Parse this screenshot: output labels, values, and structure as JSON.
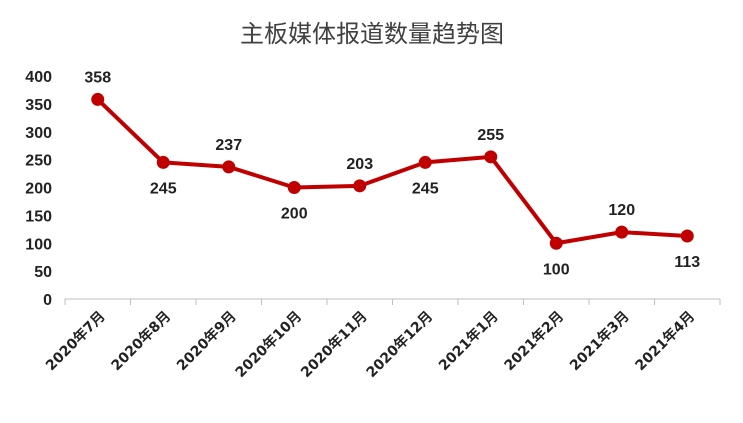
{
  "chart_data": {
    "type": "line",
    "title": "主板媒体报道数量趋势图",
    "xlabel": "",
    "ylabel": "",
    "categories": [
      "2020年7月",
      "2020年8月",
      "2020年9月",
      "2020年10月",
      "2020年11月",
      "2020年12月",
      "2021年1月",
      "2021年2月",
      "2021年3月",
      "2021年4月"
    ],
    "series": [
      {
        "values": [
          358,
          245,
          237,
          200,
          203,
          245,
          255,
          100,
          120,
          113
        ],
        "color": "#C00000"
      }
    ],
    "ylim": [
      0,
      400
    ],
    "yticks": [
      0,
      50,
      100,
      150,
      200,
      250,
      300,
      350,
      400
    ],
    "label_positions": [
      "above",
      "below",
      "above",
      "below",
      "above",
      "below",
      "above",
      "below",
      "above",
      "below"
    ],
    "grid": false,
    "legend": "none"
  }
}
